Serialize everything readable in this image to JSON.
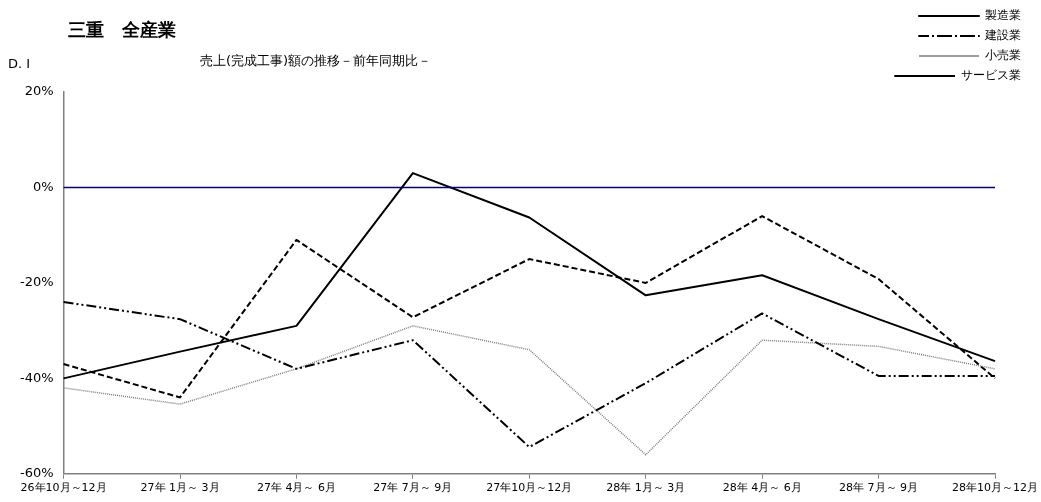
{
  "chart_data": {
    "type": "line",
    "title": "三重　全産業",
    "subtitle": "売上(完成工事)額の推移－前年同期比－",
    "ylabel": "D. I",
    "categories": [
      "26年10月～12月",
      "27年 1月～ 3月",
      "27年 4月～ 6月",
      "27年 7月～ 9月",
      "27年10月～12月",
      "28年 1月～ 3月",
      "28年 4月～ 6月",
      "28年 7月～ 9月",
      "28年10月～12月"
    ],
    "series": [
      {
        "name": "製造業",
        "color": "#000000",
        "line_style": "solid",
        "values": [
          -40,
          -34.4,
          -29,
          3,
          -6.3,
          -22.6,
          -18.4,
          -27.6,
          -36.4
        ]
      },
      {
        "name": "建設業",
        "color": "#000000",
        "line_style": "dashdot",
        "values": [
          -24,
          -27.6,
          -38,
          -32,
          -54.4,
          -41,
          -26.4,
          -39.5,
          -39.5
        ]
      },
      {
        "name": "小売業",
        "color": "#808080",
        "line_style": "dotted",
        "values": [
          -42,
          -45.4,
          -38,
          -29,
          -34,
          -56,
          -32,
          -33.3,
          -38
        ]
      },
      {
        "name": "サービス業",
        "color": "#000000",
        "line_style": "dashed",
        "values": [
          -37,
          -44,
          -11,
          -27.2,
          -15,
          -20,
          -6,
          -19.2,
          -40
        ]
      }
    ],
    "ylim": [
      -60,
      20
    ],
    "yticks": [
      {
        "value": -60,
        "label": "-60%"
      },
      {
        "value": -40,
        "label": "-40%"
      },
      {
        "value": -20,
        "label": "-20%"
      },
      {
        "value": 0,
        "label": "0%"
      },
      {
        "value": 20,
        "label": "20%"
      }
    ],
    "ref_lines": [
      {
        "axis": "y",
        "value": 0,
        "color": "#000080"
      }
    ],
    "grid": false,
    "legend": "top right",
    "marker": "none"
  }
}
